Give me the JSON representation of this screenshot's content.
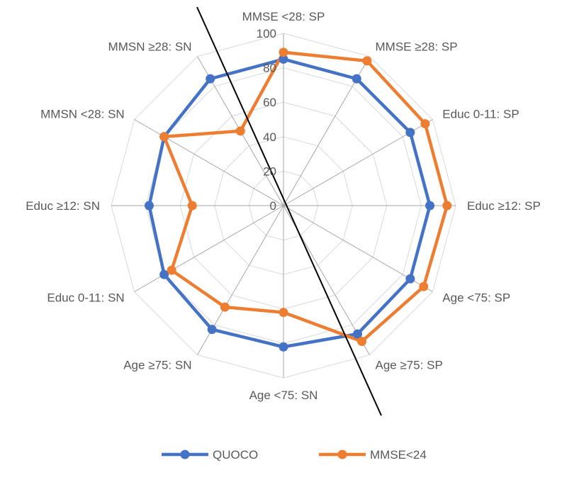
{
  "chart_data": {
    "type": "radar",
    "categories": [
      "MMSE <28: SP",
      "MMSE ≥28: SP",
      "Educ 0-11: SP",
      "Educ ≥12: SP",
      "Age <75: SP",
      "Age ≥75: SP",
      "Age <75: SN",
      "Age ≥75: SN",
      "Educ 0-11: SN",
      "Educ ≥12: SN",
      "MMSN <28: SN",
      "MMSN ≥28: SN"
    ],
    "series": [
      {
        "name": "QUOCO",
        "color": "#4472C4",
        "values": [
          85,
          85,
          85,
          85,
          85,
          86,
          82,
          83,
          80,
          78,
          80,
          85
        ]
      },
      {
        "name": "MMSE<24",
        "color": "#ED7D31",
        "values": [
          89,
          97,
          95,
          95,
          94,
          91,
          62,
          68,
          75,
          53,
          80,
          50
        ]
      }
    ],
    "radial_axis": {
      "min": 0,
      "max": 100,
      "step": 20,
      "tick_labels": [
        "0",
        "20",
        "40",
        "60",
        "80",
        "100"
      ]
    },
    "grid": true,
    "legend_position": "bottom",
    "annotation": "black diagonal dividing line"
  }
}
